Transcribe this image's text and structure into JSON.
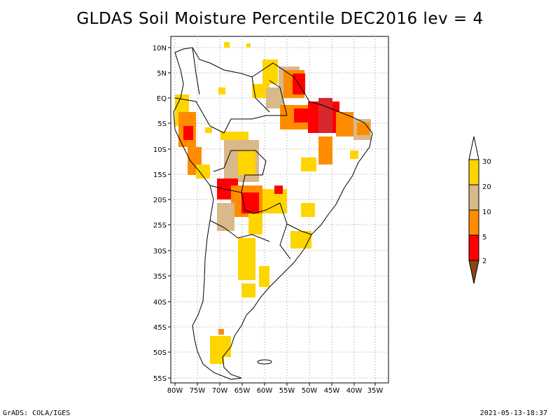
{
  "title": "GLDAS Soil Moisture Percentile DEC2016 lev = 4",
  "axes": {
    "lat_labels": [
      "10N",
      "5N",
      "EQ",
      "5S",
      "10S",
      "15S",
      "20S",
      "25S",
      "30S",
      "35S",
      "40S",
      "45S",
      "50S",
      "55S"
    ],
    "lon_labels": [
      "80W",
      "75W",
      "70W",
      "65W",
      "60W",
      "55W",
      "50W",
      "45W",
      "40W",
      "35W"
    ],
    "lat_range": [
      -56,
      11
    ],
    "lon_range": [
      -81,
      -34
    ],
    "grid": true
  },
  "legend": {
    "labels": [
      "30",
      "20",
      "10",
      "5",
      "2"
    ],
    "colors": {
      "above_30": "#ffffff",
      "p20_30": "#ffd500",
      "p10_20": "#d9b88a",
      "p5_10": "#ff8c00",
      "p2_5": "#ff0000",
      "below_2": "#8b4513"
    }
  },
  "footer": {
    "left": "GrADS: COLA/IGES",
    "right": "2021-05-13-18:37"
  }
}
